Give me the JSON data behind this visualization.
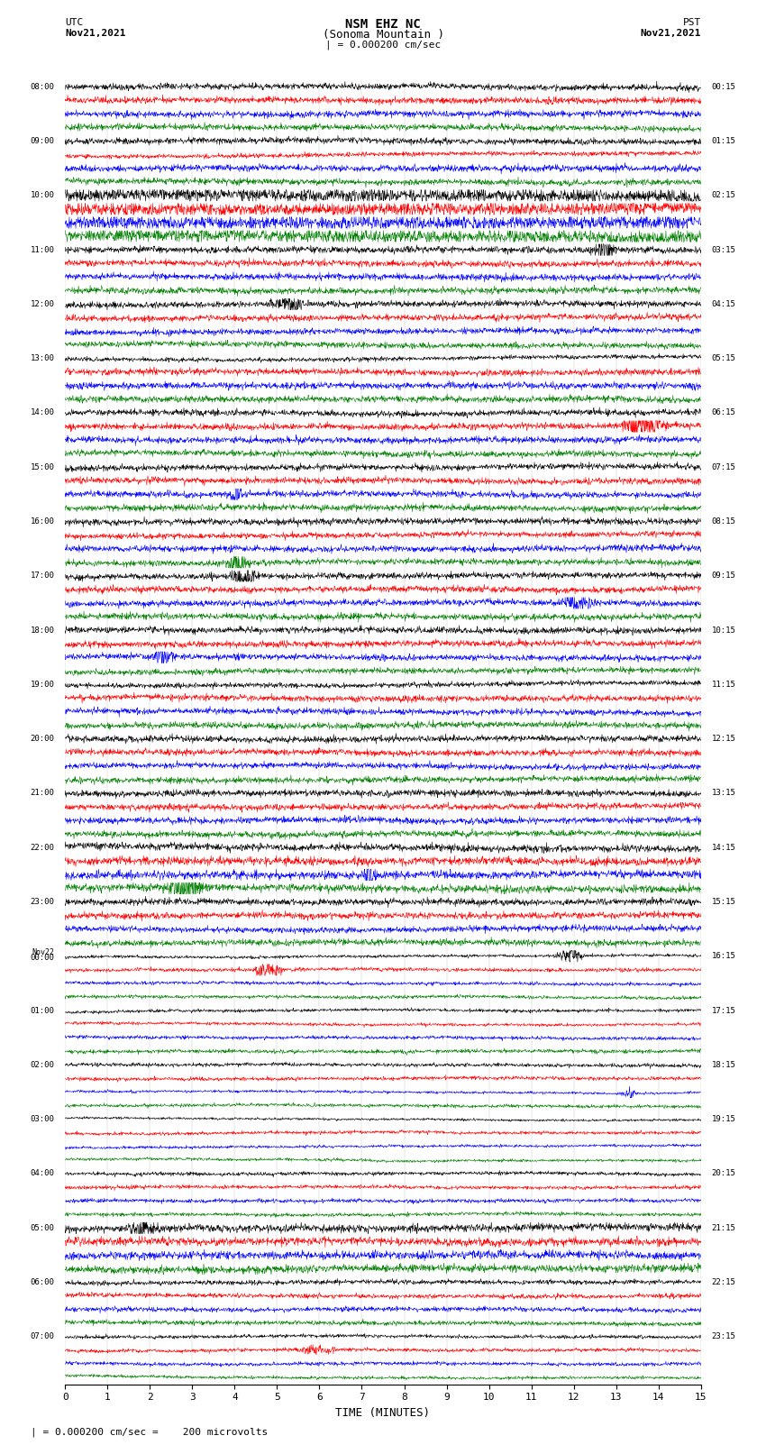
{
  "title_line1": "NSM EHZ NC",
  "title_line2": "(Sonoma Mountain )",
  "title_line3": "| = 0.000200 cm/sec",
  "left_label_top": "UTC",
  "left_label_date": "Nov21,2021",
  "right_label_top": "PST",
  "right_label_date": "Nov21,2021",
  "xlabel": "TIME (MINUTES)",
  "footer_text": "= 0.000200 cm/sec =    200 microvolts",
  "background_color": "#ffffff",
  "trace_colors": [
    "black",
    "red",
    "blue",
    "green"
  ],
  "num_groups": 24,
  "traces_per_group": 4,
  "xlim": [
    0,
    15
  ],
  "xticks": [
    0,
    1,
    2,
    3,
    4,
    5,
    6,
    7,
    8,
    9,
    10,
    11,
    12,
    13,
    14,
    15
  ],
  "left_times_utc": [
    "08:00",
    "",
    "",
    "",
    "09:00",
    "",
    "",
    "",
    "10:00",
    "",
    "",
    "",
    "11:00",
    "",
    "",
    "",
    "12:00",
    "",
    "",
    "",
    "13:00",
    "",
    "",
    "",
    "14:00",
    "",
    "",
    "",
    "15:00",
    "",
    "",
    "",
    "16:00",
    "",
    "",
    "",
    "17:00",
    "",
    "",
    "",
    "18:00",
    "",
    "",
    "",
    "19:00",
    "",
    "",
    "",
    "20:00",
    "",
    "",
    "",
    "21:00",
    "",
    "",
    "",
    "22:00",
    "",
    "",
    "",
    "23:00",
    "",
    "",
    "",
    "Nov22\n00:00",
    "",
    "",
    "",
    "01:00",
    "",
    "",
    "",
    "02:00",
    "",
    "",
    "",
    "03:00",
    "",
    "",
    "",
    "04:00",
    "",
    "",
    "",
    "05:00",
    "",
    "",
    "",
    "06:00",
    "",
    "",
    "",
    "07:00",
    "",
    "",
    ""
  ],
  "right_times_pst": [
    "00:15",
    "",
    "",
    "",
    "01:15",
    "",
    "",
    "",
    "02:15",
    "",
    "",
    "",
    "03:15",
    "",
    "",
    "",
    "04:15",
    "",
    "",
    "",
    "05:15",
    "",
    "",
    "",
    "06:15",
    "",
    "",
    "",
    "07:15",
    "",
    "",
    "",
    "08:15",
    "",
    "",
    "",
    "09:15",
    "",
    "",
    "",
    "10:15",
    "",
    "",
    "",
    "11:15",
    "",
    "",
    "",
    "12:15",
    "",
    "",
    "",
    "13:15",
    "",
    "",
    "",
    "14:15",
    "",
    "",
    "",
    "15:15",
    "",
    "",
    "",
    "16:15",
    "",
    "",
    "",
    "17:15",
    "",
    "",
    "",
    "18:15",
    "",
    "",
    "",
    "19:15",
    "",
    "",
    "",
    "20:15",
    "",
    "",
    "",
    "21:15",
    "",
    "",
    "",
    "22:15",
    "",
    "",
    "",
    "23:15",
    "",
    "",
    ""
  ],
  "high_amp_groups": [
    2,
    21
  ],
  "event_groups": [
    2,
    14,
    21,
    22
  ],
  "grid_color": "#888888"
}
